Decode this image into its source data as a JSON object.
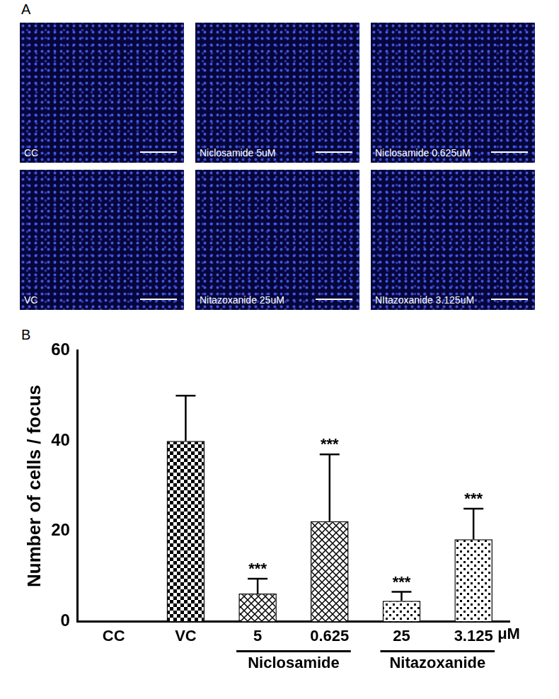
{
  "panel_a": {
    "label": "A",
    "images": [
      "CC",
      "Niclosamide 5uM",
      "Niclosamide 0.625uM",
      "VC",
      "Nitazoxanide 25uM",
      "NItazoxanide 3.125uM"
    ]
  },
  "chart_data": {
    "type": "bar",
    "title": "B",
    "categories": [
      "CC",
      "VC",
      "5",
      "0.625",
      "25",
      "3.125"
    ],
    "values": [
      0,
      40,
      6.2,
      22.2,
      4.6,
      18.2
    ],
    "errors": [
      null,
      10,
      3.3,
      14.8,
      2,
      6.8
    ],
    "significance": [
      null,
      null,
      "***",
      "***",
      "***",
      "***"
    ],
    "groups": [
      {
        "label": "Niclosamide",
        "categories": [
          "5",
          "0.625"
        ]
      },
      {
        "label": "Nitazoxanide",
        "categories": [
          "25",
          "3.125"
        ]
      }
    ],
    "x_label": "μM",
    "y_label": "Number of cells / focus",
    "color": "#000000",
    "ylim": [
      0,
      60
    ],
    "yticks": [
      0,
      20,
      40,
      60
    ],
    "grid": false
  }
}
